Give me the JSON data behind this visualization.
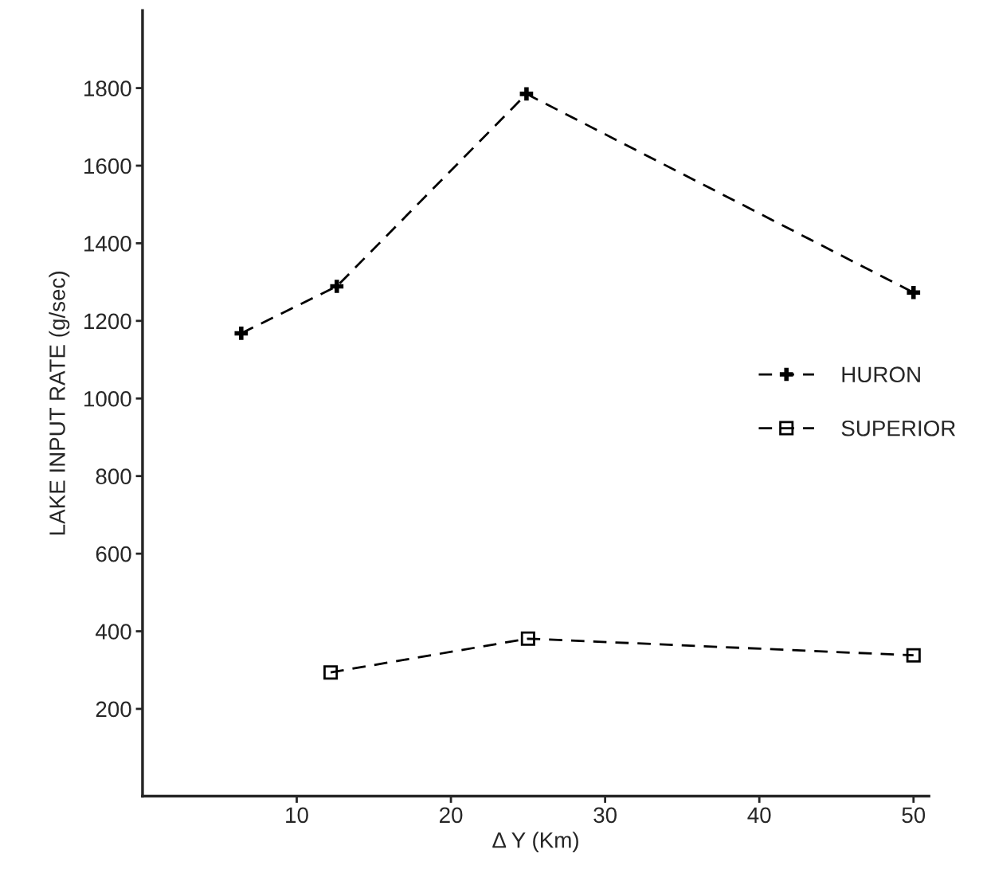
{
  "chart_data": {
    "type": "line",
    "xlabel": "Δ Y (Km)",
    "ylabel": "LAKE INPUT RATE (g/sec)",
    "xlim": [
      0,
      51
    ],
    "ylim": [
      -25,
      2000
    ],
    "xticks": [
      10,
      20,
      30,
      40,
      50
    ],
    "yticks": [
      200,
      400,
      600,
      800,
      1000,
      1200,
      1400,
      1600,
      1800
    ],
    "line_style": "dashed",
    "legend": "center right",
    "grid": false,
    "series": [
      {
        "name": "HURON",
        "color": "#000000",
        "marker": "cross",
        "x": [
          6.4,
          12.6,
          24.9,
          50
        ],
        "values": [
          1168,
          1289,
          1785,
          1273
        ]
      },
      {
        "name": "SUPERIOR",
        "color": "#000000",
        "marker": "square",
        "x": [
          12.2,
          25,
          50
        ],
        "values": [
          294,
          381,
          338
        ]
      }
    ]
  }
}
